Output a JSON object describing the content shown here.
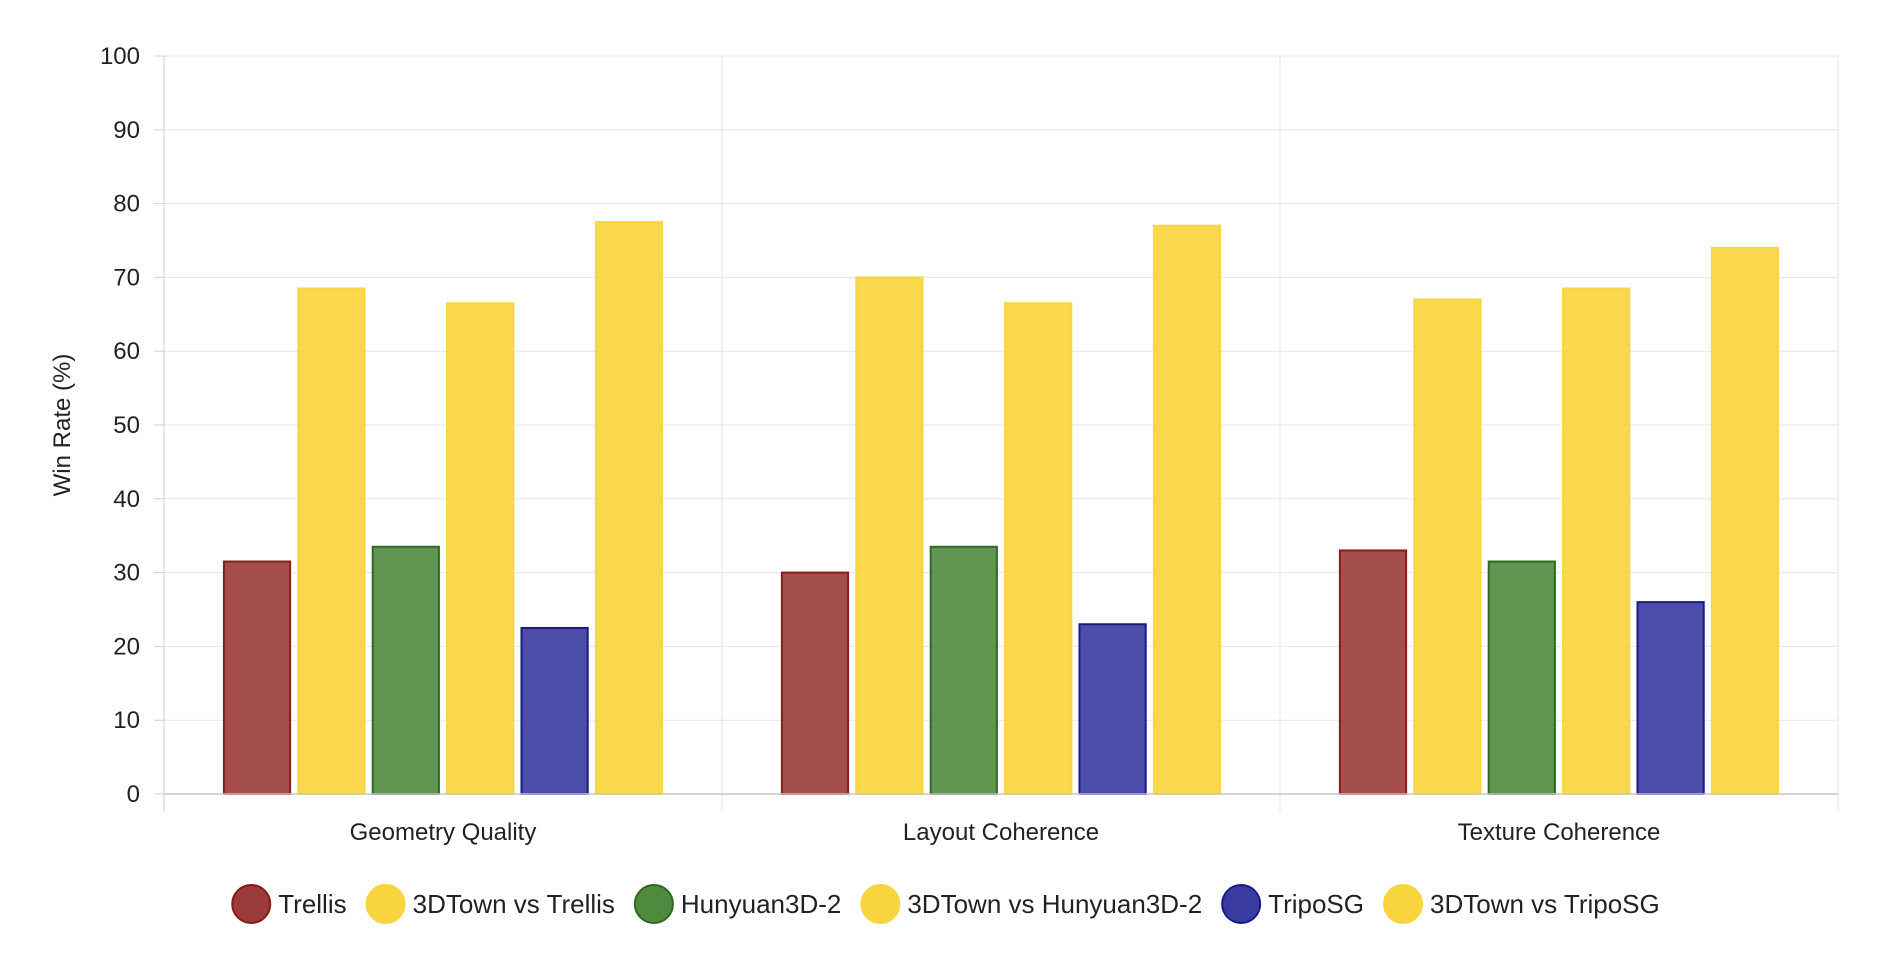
{
  "chart_data": {
    "type": "bar",
    "ylabel": "Win Rate (%)",
    "xlabel": "",
    "ylim": [
      0,
      100
    ],
    "yticks": [
      0,
      10,
      20,
      30,
      40,
      50,
      60,
      70,
      80,
      90,
      100
    ],
    "grid": true,
    "legend_position": "bottom",
    "categories": [
      "Geometry Quality",
      "Layout Coherence",
      "Texture Coherence"
    ],
    "series": [
      {
        "name": "Trellis",
        "values": [
          31.5,
          30.0,
          33.0
        ],
        "color": "#9b3b3b",
        "border": "#8b1a1a"
      },
      {
        "name": "3DTown vs Trellis",
        "values": [
          68.5,
          70.0,
          67.0
        ],
        "color": "#f8d53f",
        "border": "#f8d53f"
      },
      {
        "name": "Hunyuan3D-2",
        "values": [
          33.5,
          33.5,
          31.5
        ],
        "color": "#4f8a3f",
        "border": "#2d6b22"
      },
      {
        "name": "3DTown vs Hunyuan3D-2",
        "values": [
          66.5,
          66.5,
          68.5
        ],
        "color": "#f8d53f",
        "border": "#f8d53f"
      },
      {
        "name": "TripoSG",
        "values": [
          22.5,
          23.0,
          26.0
        ],
        "color": "#3a3ba0",
        "border": "#1a1a8b"
      },
      {
        "name": "3DTown vs TripoSG",
        "values": [
          77.5,
          77.0,
          74.0
        ],
        "color": "#f8d53f",
        "border": "#f8d53f"
      }
    ]
  }
}
